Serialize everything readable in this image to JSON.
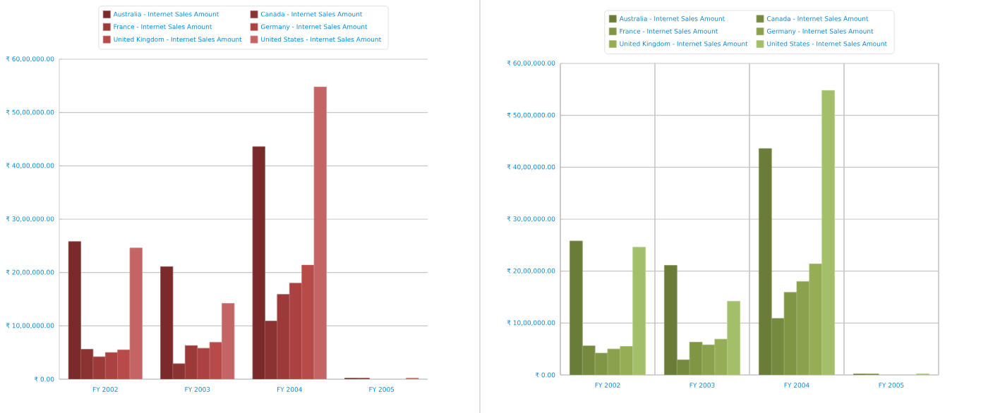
{
  "chart_data": [
    {
      "type": "bar",
      "categories": [
        "FY 2002",
        "FY 2003",
        "FY 2004",
        "FY 2005"
      ],
      "series": [
        {
          "name": "Australia - Internet Sales Amount",
          "color": "#7b2a2a",
          "values": [
            2580000,
            2110000,
            4360000,
            20000
          ]
        },
        {
          "name": "Canada - Internet Sales Amount",
          "color": "#8b3232",
          "values": [
            560000,
            290000,
            1090000,
            20000
          ]
        },
        {
          "name": "France - Internet Sales Amount",
          "color": "#9c3a3a",
          "values": [
            420000,
            630000,
            1590000,
            null
          ]
        },
        {
          "name": "Germany - Internet Sales Amount",
          "color": "#ab4141",
          "values": [
            500000,
            580000,
            1800000,
            null
          ]
        },
        {
          "name": "United Kingdom - Internet Sales Amount",
          "color": "#b84a4a",
          "values": [
            550000,
            690000,
            2140000,
            null
          ]
        },
        {
          "name": "United States - Internet Sales Amount",
          "color": "#c46464",
          "values": [
            2460000,
            1420000,
            5480000,
            20000
          ]
        }
      ],
      "ylim": [
        0,
        6000000
      ],
      "yticks": [
        {
          "value": 0,
          "label": "₹ 0.00"
        },
        {
          "value": 1000000,
          "label": "₹ 10,00,000.00"
        },
        {
          "value": 2000000,
          "label": "₹ 20,00,000.00"
        },
        {
          "value": 3000000,
          "label": "₹ 30,00,000.00"
        },
        {
          "value": 4000000,
          "label": "₹ 40,00,000.00"
        },
        {
          "value": 5000000,
          "label": "₹ 50,00,000.00"
        },
        {
          "value": 6000000,
          "label": "₹ 60,00,000.00"
        }
      ],
      "grid": "y",
      "legend": "top"
    },
    {
      "type": "bar",
      "categories": [
        "FY 2002",
        "FY 2003",
        "FY 2004",
        "FY 2005"
      ],
      "series": [
        {
          "name": "Australia - Internet Sales Amount",
          "color": "#6a7d38",
          "values": [
            2580000,
            2110000,
            4360000,
            20000
          ]
        },
        {
          "name": "Canada - Internet Sales Amount",
          "color": "#748a3e",
          "values": [
            560000,
            290000,
            1090000,
            20000
          ]
        },
        {
          "name": "France - Internet Sales Amount",
          "color": "#7f9645",
          "values": [
            420000,
            630000,
            1590000,
            null
          ]
        },
        {
          "name": "Germany - Internet Sales Amount",
          "color": "#8aa24d",
          "values": [
            500000,
            580000,
            1800000,
            null
          ]
        },
        {
          "name": "United Kingdom - Internet Sales Amount",
          "color": "#95ae56",
          "values": [
            550000,
            690000,
            2140000,
            null
          ]
        },
        {
          "name": "United States - Internet Sales Amount",
          "color": "#a3bf6a",
          "values": [
            2460000,
            1420000,
            5480000,
            20000
          ]
        }
      ],
      "ylim": [
        0,
        6000000
      ],
      "yticks": [
        {
          "value": 0,
          "label": "₹ 0.00"
        },
        {
          "value": 1000000,
          "label": "₹ 10,00,000.00"
        },
        {
          "value": 2000000,
          "label": "₹ 20,00,000.00"
        },
        {
          "value": 3000000,
          "label": "₹ 30,00,000.00"
        },
        {
          "value": 4000000,
          "label": "₹ 40,00,000.00"
        },
        {
          "value": 5000000,
          "label": "₹ 50,00,000.00"
        },
        {
          "value": 6000000,
          "label": "₹ 60,00,000.00"
        }
      ],
      "grid": true,
      "legend": "top"
    }
  ]
}
